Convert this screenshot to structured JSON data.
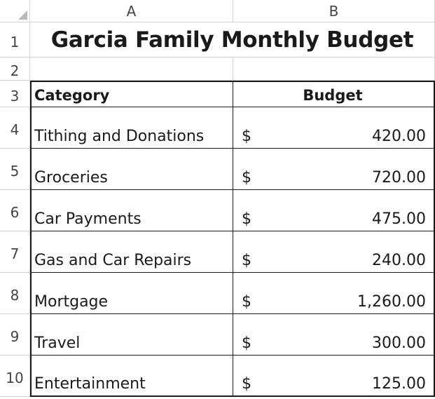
{
  "sheet": {
    "columns": [
      "A",
      "B"
    ],
    "rows": [
      "1",
      "2",
      "3",
      "4",
      "5",
      "6",
      "7",
      "8",
      "9",
      "10"
    ],
    "title": "Garcia Family Monthly Budget",
    "headers": {
      "category": "Category",
      "budget": "Budget"
    },
    "currency_symbol": "$",
    "items": [
      {
        "category": "Tithing and Donations",
        "amount": "420.00"
      },
      {
        "category": "Groceries",
        "amount": "720.00"
      },
      {
        "category": "Car Payments",
        "amount": "475.00"
      },
      {
        "category": "Gas and Car Repairs",
        "amount": "240.00"
      },
      {
        "category": "Mortgage",
        "amount": "1,260.00"
      },
      {
        "category": "Travel",
        "amount": "300.00"
      },
      {
        "category": "Entertainment",
        "amount": "125.00"
      }
    ]
  },
  "colors": {
    "gridline": "#d4d4d4",
    "border": "#1a1a1a",
    "header_text": "#444444"
  }
}
